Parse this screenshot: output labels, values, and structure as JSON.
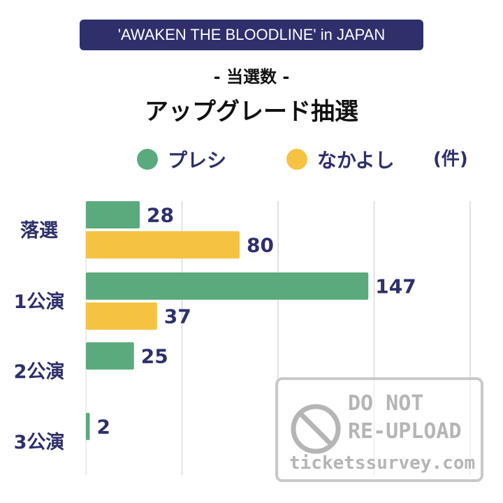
{
  "banner": "'AWAKEN THE BLOODLINE' in JAPAN",
  "subtitle": "- 当選数 -",
  "title": "アップグレード抽選",
  "unit": "(件)",
  "watermark": {
    "line1": "DO NOT",
    "line2": "RE-UPLOAD",
    "line3": "ticketssurvey.com"
  },
  "colors": {
    "presi": "#5aaa7d",
    "nakayoshi": "#f5c242",
    "text": "#2e2f6b",
    "banner_bg": "#2e2f6b"
  },
  "chart_data": {
    "type": "bar",
    "orientation": "horizontal",
    "categories": [
      "落選",
      "1公演",
      "2公演",
      "3公演"
    ],
    "series": [
      {
        "name": "プレシ",
        "values": [
          28,
          147,
          25,
          2
        ]
      },
      {
        "name": "なかよし",
        "values": [
          80,
          37,
          null,
          null
        ]
      }
    ],
    "xlim": [
      0,
      200
    ],
    "grid": true,
    "legend_position": "top"
  }
}
